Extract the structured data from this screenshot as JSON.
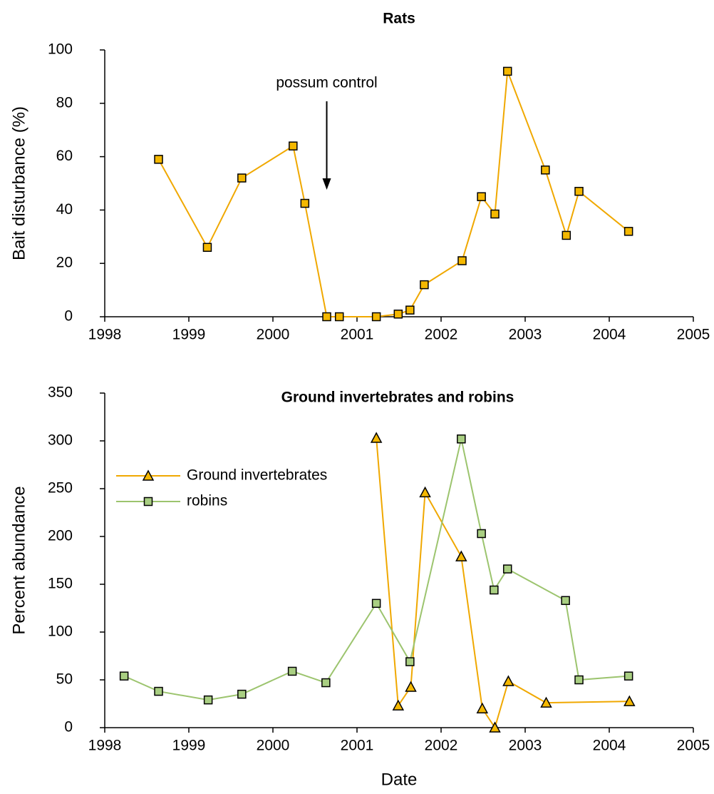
{
  "chart_data": [
    {
      "type": "line",
      "title": "Rats",
      "y_label": "Bait disturbance (%)",
      "x": [
        1998.64,
        1999.22,
        1999.63,
        2000.24,
        2000.38,
        2000.64,
        2000.79,
        2001.23,
        2001.49,
        2001.63,
        2001.8,
        2002.25,
        2002.48,
        2002.64,
        2002.79,
        2003.24,
        2003.49,
        2003.64,
        2004.23
      ],
      "values": [
        59,
        26,
        52,
        64,
        42.5,
        0,
        0,
        0,
        1,
        2.5,
        12,
        21,
        45,
        38.5,
        92,
        55,
        30.5,
        47,
        32
      ],
      "color": "#f0a800",
      "marker_color": "#f5b800",
      "marker": "square",
      "xlim": [
        1998,
        2005
      ],
      "xticks": [
        1998,
        1999,
        2000,
        2001,
        2002,
        2003,
        2004,
        2005
      ],
      "ylim": [
        0,
        100
      ],
      "yticks": [
        0,
        20,
        40,
        60,
        80,
        100
      ],
      "annotations": [
        {
          "text": "possum control",
          "x": 2000.64
        }
      ]
    },
    {
      "type": "line",
      "title": "Ground invertebrates and robins",
      "x_label": "Date",
      "y_label": "Percent abundance",
      "series": [
        {
          "name": "Ground invertebrates",
          "color": "#f0a800",
          "marker_color": "#f5b800",
          "marker": "triangle",
          "x": [
            2001.23,
            2001.49,
            2001.64,
            2001.81,
            2002.24,
            2002.49,
            2002.64,
            2002.8,
            2003.25,
            2004.24
          ],
          "values": [
            303,
            23,
            42.5,
            246,
            179,
            20,
            0,
            48.5,
            26,
            27.5
          ]
        },
        {
          "name": "robins",
          "color": "#9cc46e",
          "marker_color": "#a9cf82",
          "marker": "square",
          "x": [
            1998.23,
            1998.64,
            1999.23,
            1999.63,
            2000.23,
            2000.63,
            2001.23,
            2001.63,
            2002.24,
            2002.48,
            2002.63,
            2002.79,
            2003.48,
            2003.64,
            2004.23
          ],
          "values": [
            54,
            38,
            29,
            35,
            59,
            47,
            130,
            69,
            302,
            203,
            144,
            166,
            133,
            50,
            54
          ]
        }
      ],
      "legend": "upper left",
      "xlim": [
        1998,
        2005
      ],
      "xticks": [
        1998,
        1999,
        2000,
        2001,
        2002,
        2003,
        2004,
        2005
      ],
      "ylim": [
        0,
        350
      ],
      "yticks": [
        0,
        50,
        100,
        150,
        200,
        250,
        300,
        350
      ]
    }
  ]
}
